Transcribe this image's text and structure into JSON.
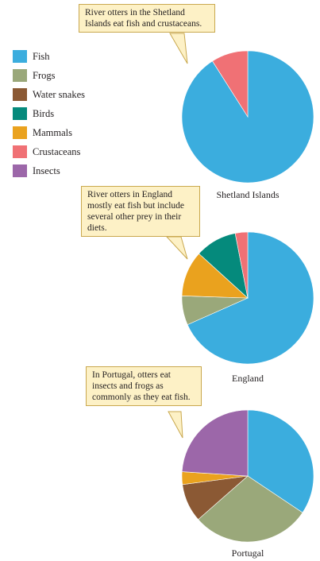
{
  "legend": [
    {
      "label": "Fish",
      "color": "#3badde"
    },
    {
      "label": "Frogs",
      "color": "#9aa87a"
    },
    {
      "label": "Water snakes",
      "color": "#8b5934"
    },
    {
      "label": "Birds",
      "color": "#058a7c"
    },
    {
      "label": "Mammals",
      "color": "#eaa21e"
    },
    {
      "label": "Crustaceans",
      "color": "#f07175"
    },
    {
      "label": "Insects",
      "color": "#9c67a9"
    }
  ],
  "callouts": {
    "shetland": "River otters in the Shetland Islands eat fish and crustaceans.",
    "england": "River otters in England mostly eat fish but include several other prey in their diets.",
    "portugal": "In Portugal, otters eat insects and frogs as commonly as they eat fish."
  },
  "colors": {
    "callout_fill": "#fdf1c6",
    "callout_border": "#c9a84e"
  },
  "chart_data": [
    {
      "type": "pie",
      "title": "Shetland Islands",
      "slices": [
        {
          "label": "Fish",
          "value": 91
        },
        {
          "label": "Crustaceans",
          "value": 9
        }
      ]
    },
    {
      "type": "pie",
      "title": "England",
      "slices": [
        {
          "label": "Fish",
          "value": 67
        },
        {
          "label": "Frogs",
          "value": 7
        },
        {
          "label": "Mammals",
          "value": 11
        },
        {
          "label": "Birds",
          "value": 10
        },
        {
          "label": "Crustaceans",
          "value": 3
        }
      ]
    },
    {
      "type": "pie",
      "title": "Portugal",
      "slices": [
        {
          "label": "Fish",
          "value": 33
        },
        {
          "label": "Frogs",
          "value": 28
        },
        {
          "label": "Water snakes",
          "value": 9
        },
        {
          "label": "Mammals",
          "value": 3
        },
        {
          "label": "Insects",
          "value": 23
        }
      ]
    }
  ]
}
